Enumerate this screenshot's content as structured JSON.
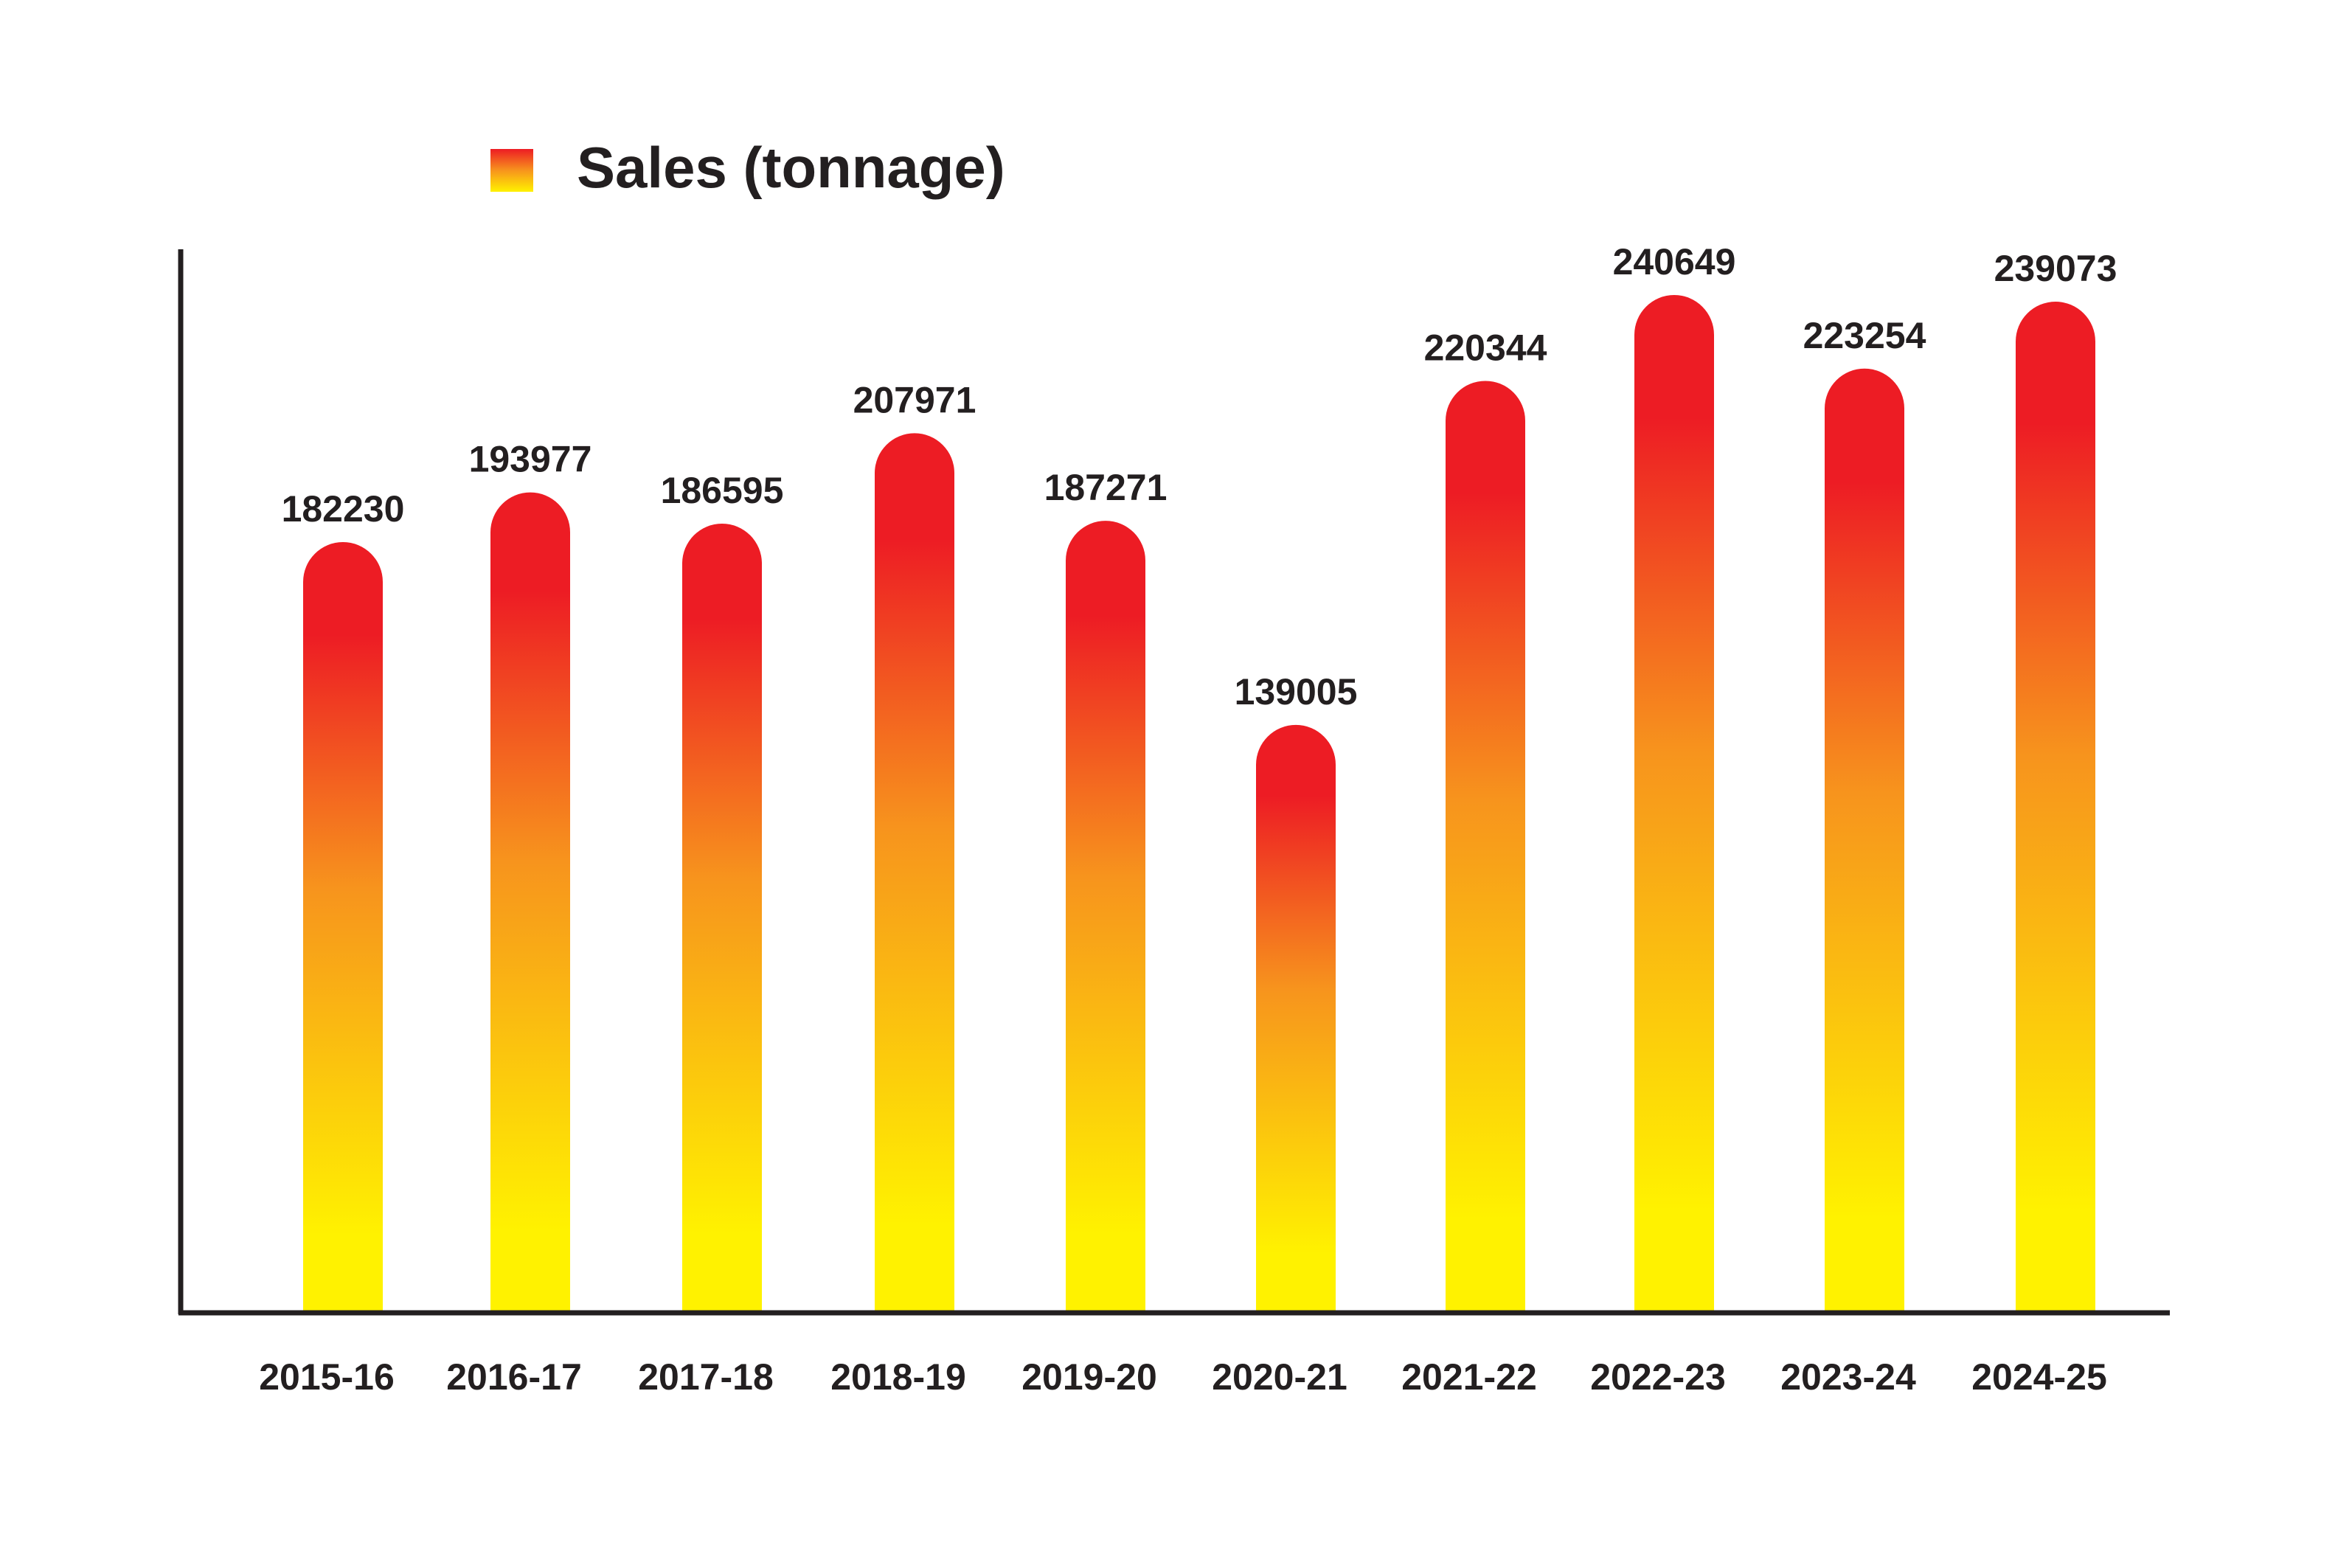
{
  "chart_data": {
    "type": "bar",
    "categories": [
      "2015-16",
      "2016-17",
      "2017-18",
      "2018-19",
      "2019-20",
      "2020-21",
      "2021-22",
      "2022-23",
      "2023-24",
      "2024-25"
    ],
    "series": [
      {
        "name": "Sales (tonnage)",
        "values": [
          182230,
          193977,
          186595,
          207971,
          187271,
          139005,
          220344,
          240649,
          223254,
          239073
        ]
      }
    ],
    "value_labels": [
      "182230",
      "193977",
      "186595",
      "207971",
      "187271",
      "139005",
      "220344",
      "240649",
      "223254",
      "239073"
    ],
    "legend_placement": "top-left",
    "grid": false,
    "bar_gradient": {
      "top": "#ed1c24",
      "middle": "#f7941d",
      "bottom": "#fff200"
    },
    "axis_color": "#231f20",
    "text_color": "#231f20"
  }
}
